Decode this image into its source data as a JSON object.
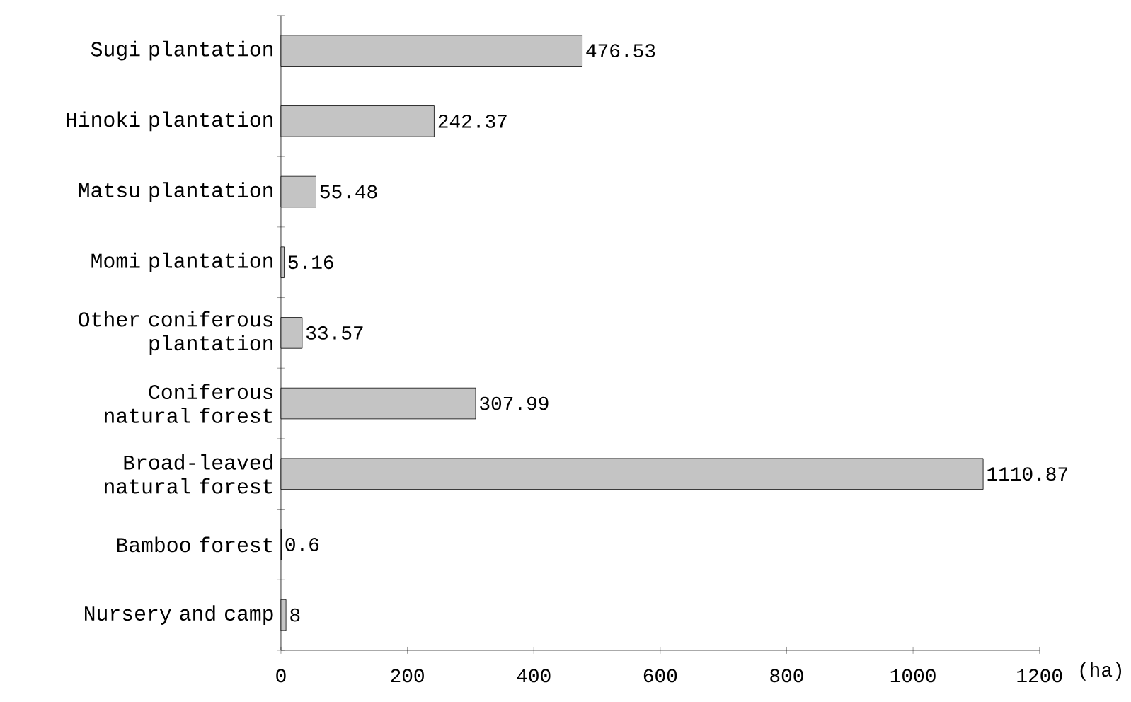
{
  "chart_data": {
    "type": "bar",
    "orientation": "horizontal",
    "xlabel": "(ha)",
    "categories": [
      "Sugi plantation",
      "Hinoki plantation",
      "Matsu plantation",
      "Momi plantation",
      "Other coniferous plantation",
      "Coniferous natural forest",
      "Broad-leaved natural forest",
      "Bamboo forest",
      "Nursery and camp"
    ],
    "values": [
      476.53,
      242.37,
      55.48,
      5.16,
      33.57,
      307.99,
      1110.87,
      0.6,
      8
    ],
    "value_labels": [
      "476.53",
      "242.37",
      "55.48",
      "5.16",
      "33.57",
      "307.99",
      "1110.87",
      "0.6",
      "8"
    ],
    "color": "#c4c4c4",
    "xlim": [
      0,
      1200
    ],
    "xticks": [
      0,
      200,
      400,
      600,
      800,
      1000,
      1200
    ],
    "grid": false
  }
}
